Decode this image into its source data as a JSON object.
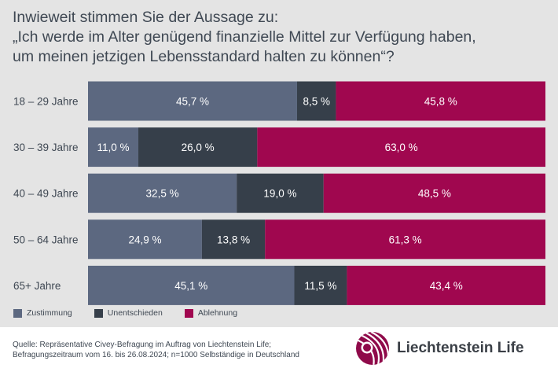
{
  "title": {
    "line1": "Inwieweit stimmen Sie der Aussage zu:",
    "line2": "„Ich werde im Alter genügend finanzielle Mittel zur Verfügung haben,",
    "line3": "um meinen jetzigen Lebensstandard halten zu können“?"
  },
  "colors": {
    "panel": "#e4e4e4",
    "zustimmung": "#5c6880",
    "unentschieden": "#363f4a",
    "ablehnung": "#a0074f",
    "text": "#3f4853"
  },
  "chart_data": {
    "type": "bar",
    "orientation": "horizontal",
    "stacked": true,
    "normalized": true,
    "title": "Inwieweit stimmen Sie der Aussage zu: „Ich werde im Alter genügend finanzielle Mittel zur Verfügung haben, um meinen jetzigen Lebensstandard halten zu können“?",
    "categories": [
      "18 – 29 Jahre",
      "30 – 39 Jahre",
      "40 – 49 Jahre",
      "50 – 64 Jahre",
      "65+ Jahre"
    ],
    "series": [
      {
        "name": "Zustimmung",
        "values": [
          45.7,
          11.0,
          32.5,
          24.9,
          45.1
        ],
        "labels": [
          "45,7 %",
          "11,0 %",
          "32,5 %",
          "24,9 %",
          "45,1 %"
        ],
        "color": "#5c6880"
      },
      {
        "name": "Unentschieden",
        "values": [
          8.5,
          26.0,
          19.0,
          13.8,
          11.5
        ],
        "labels": [
          "8,5 %",
          "26,0 %",
          "19,0 %",
          "13,8 %",
          "11,5 %"
        ],
        "color": "#363f4a"
      },
      {
        "name": "Ablehnung",
        "values": [
          45.8,
          63.0,
          48.5,
          61.3,
          43.4
        ],
        "labels": [
          "45,8 %",
          "63,0 %",
          "48,5 %",
          "61,3 %",
          "43,4 %"
        ],
        "color": "#a0074f"
      }
    ],
    "legend_position": "bottom-left",
    "grid": false
  },
  "legend": {
    "items": [
      "Zustimmung",
      "Unentschieden",
      "Ablehnung"
    ]
  },
  "source": {
    "line1": "Quelle: Repräsentative Civey-Befragung im Auftrag von Liechtenstein Life;",
    "line2": "Befragungszeitraum vom 16. bis 26.08.2024; n=1000 Selbständige in Deutschland"
  },
  "brand": {
    "name": "Liechtenstein Life",
    "logo_icon": "liechtenstein-life-logo-icon"
  }
}
